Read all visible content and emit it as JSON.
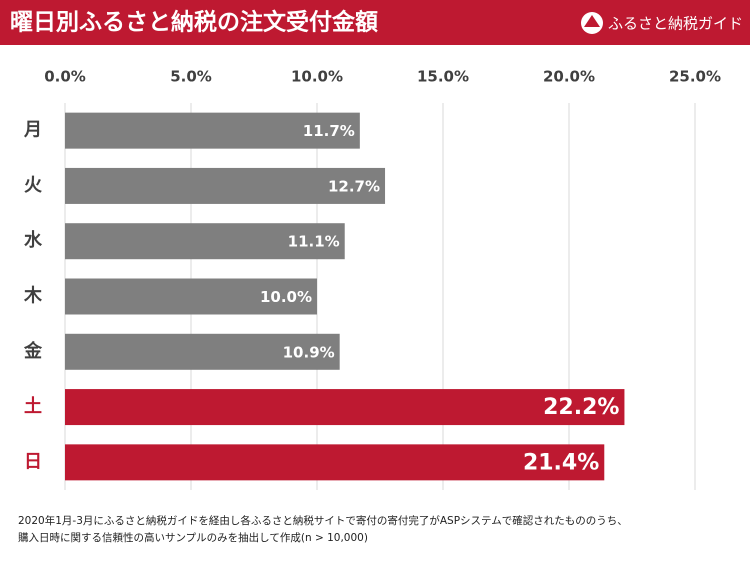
{
  "chart_data": {
    "type": "bar",
    "orientation": "horizontal",
    "title": "曜日別ふるさと納税の注文受付金額",
    "brand": "ふるさと納税ガイド",
    "categories": [
      "月",
      "火",
      "水",
      "木",
      "金",
      "土",
      "日"
    ],
    "values": [
      11.7,
      12.7,
      11.1,
      10.0,
      10.9,
      22.2,
      21.4
    ],
    "value_labels": [
      "11.7%",
      "12.7%",
      "11.1%",
      "10.0%",
      "10.9%",
      "22.2%",
      "21.4%"
    ],
    "colors": [
      "#7f7f7f",
      "#7f7f7f",
      "#7f7f7f",
      "#7f7f7f",
      "#7f7f7f",
      "#be1931",
      "#be1931"
    ],
    "category_colors": [
      "#404040",
      "#404040",
      "#404040",
      "#404040",
      "#404040",
      "#be1931",
      "#be1931"
    ],
    "xlim": [
      0,
      25
    ],
    "xticks": [
      {
        "value": 0,
        "label": "0.0%"
      },
      {
        "value": 5,
        "label": "5.0%"
      },
      {
        "value": 10,
        "label": "10.0%"
      },
      {
        "value": 15,
        "label": "15.0%"
      },
      {
        "value": 20,
        "label": "20.0%"
      },
      {
        "value": 25,
        "label": "25.0%"
      }
    ],
    "grid": true,
    "footnote": [
      "2020年1月-3月にふるさと納税ガイドを経由し各ふるさと納税サイトで寄付の寄付完了がASPシステムで確認されたもののうち、",
      "購入日時に関する信頼性の高いサンプルのみを抽出して作成(n > 10,000)"
    ]
  }
}
